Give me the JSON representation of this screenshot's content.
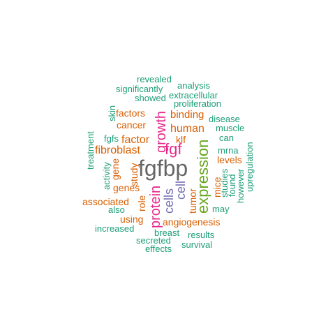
{
  "palette": {
    "teal": "#1b9e77",
    "orange": "#d95f02",
    "purple": "#7570b3",
    "magenta": "#e7298a",
    "green": "#66a61e",
    "gray": "#666666"
  },
  "words": [
    {
      "text": "fgfbp",
      "color": "gray",
      "weight": 10
    },
    {
      "text": "expression",
      "color": "green",
      "weight": 7
    },
    {
      "text": "protein",
      "color": "magenta",
      "weight": 6
    },
    {
      "text": "growth",
      "color": "magenta",
      "weight": 6
    },
    {
      "text": "fgf",
      "color": "magenta",
      "weight": 6
    },
    {
      "text": "cells",
      "color": "purple",
      "weight": 5
    },
    {
      "text": "cell",
      "color": "purple",
      "weight": 5
    },
    {
      "text": "human",
      "color": "orange",
      "weight": 4
    },
    {
      "text": "factor",
      "color": "orange",
      "weight": 4
    },
    {
      "text": "fibroblast",
      "color": "orange",
      "weight": 4
    },
    {
      "text": "binding",
      "color": "orange",
      "weight": 4
    },
    {
      "text": "cancer",
      "color": "orange",
      "weight": 3
    },
    {
      "text": "factors",
      "color": "orange",
      "weight": 3
    },
    {
      "text": "study",
      "color": "orange",
      "weight": 3
    },
    {
      "text": "gene",
      "color": "orange",
      "weight": 3
    },
    {
      "text": "genes",
      "color": "orange",
      "weight": 3
    },
    {
      "text": "klf",
      "color": "orange",
      "weight": 3
    },
    {
      "text": "tumor",
      "color": "orange",
      "weight": 3
    },
    {
      "text": "role",
      "color": "orange",
      "weight": 3
    },
    {
      "text": "levels",
      "color": "orange",
      "weight": 3
    },
    {
      "text": "mice",
      "color": "orange",
      "weight": 3
    },
    {
      "text": "associated",
      "color": "orange",
      "weight": 3
    },
    {
      "text": "using",
      "color": "orange",
      "weight": 3
    },
    {
      "text": "angiogenesis",
      "color": "orange",
      "weight": 3
    },
    {
      "text": "revealed",
      "color": "teal",
      "weight": 1
    },
    {
      "text": "analysis",
      "color": "teal",
      "weight": 1
    },
    {
      "text": "significantly",
      "color": "teal",
      "weight": 1
    },
    {
      "text": "extracellular",
      "color": "teal",
      "weight": 1
    },
    {
      "text": "showed",
      "color": "teal",
      "weight": 1
    },
    {
      "text": "proliferation",
      "color": "teal",
      "weight": 1
    },
    {
      "text": "skin",
      "color": "teal",
      "weight": 1
    },
    {
      "text": "disease",
      "color": "teal",
      "weight": 1
    },
    {
      "text": "muscle",
      "color": "teal",
      "weight": 1
    },
    {
      "text": "treatment",
      "color": "teal",
      "weight": 1
    },
    {
      "text": "fgfs",
      "color": "teal",
      "weight": 1
    },
    {
      "text": "can",
      "color": "teal",
      "weight": 1
    },
    {
      "text": "mrna",
      "color": "teal",
      "weight": 1
    },
    {
      "text": "activity",
      "color": "teal",
      "weight": 1
    },
    {
      "text": "upregulation",
      "color": "teal",
      "weight": 1
    },
    {
      "text": "however",
      "color": "teal",
      "weight": 1
    },
    {
      "text": "found",
      "color": "teal",
      "weight": 1
    },
    {
      "text": "studies",
      "color": "teal",
      "weight": 1
    },
    {
      "text": "also",
      "color": "teal",
      "weight": 1
    },
    {
      "text": "may",
      "color": "teal",
      "weight": 1
    },
    {
      "text": "increased",
      "color": "teal",
      "weight": 1
    },
    {
      "text": "breast",
      "color": "teal",
      "weight": 1
    },
    {
      "text": "results",
      "color": "teal",
      "weight": 1
    },
    {
      "text": "secreted",
      "color": "teal",
      "weight": 1
    },
    {
      "text": "survival",
      "color": "teal",
      "weight": 1
    },
    {
      "text": "effects",
      "color": "teal",
      "weight": 1
    }
  ]
}
